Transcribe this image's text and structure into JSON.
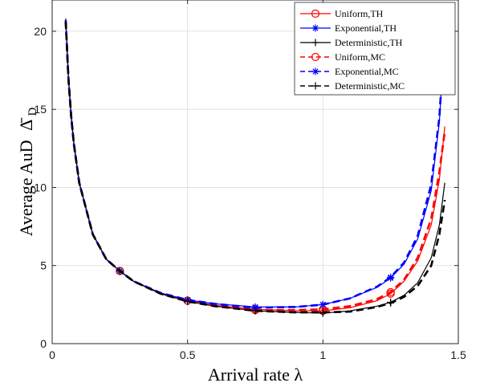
{
  "chart_data": {
    "type": "line",
    "title": "",
    "xlabel": "Arrival rate λ",
    "ylabel_prefix": "Average AuD",
    "ylabel_symbol": "Δ̄",
    "ylabel_subscript": "D",
    "xlim": [
      0,
      1.5
    ],
    "ylim": [
      0,
      22
    ],
    "xticks": [
      0,
      0.5,
      1,
      1.5
    ],
    "xtick_labels": [
      "0",
      "0.5",
      "1",
      "1.5"
    ],
    "yticks": [
      0,
      5,
      10,
      15,
      20
    ],
    "ytick_labels": [
      "0",
      "5",
      "10",
      "15",
      "20"
    ],
    "grid": true,
    "legend_position": "top-right",
    "series": [
      {
        "name": "Uniform,TH",
        "color": "#ff0000",
        "dash": "solid",
        "marker": "circle",
        "x": [
          0.05,
          0.06,
          0.07,
          0.08,
          0.1,
          0.15,
          0.2,
          0.25,
          0.3,
          0.4,
          0.5,
          0.6,
          0.75,
          0.9,
          1.0,
          1.1,
          1.2,
          1.25,
          1.3,
          1.35,
          1.4,
          1.43,
          1.45
        ],
        "y": [
          20.8,
          17.0,
          14.6,
          12.8,
          10.3,
          7.0,
          5.4,
          4.65,
          4.0,
          3.2,
          2.75,
          2.45,
          2.2,
          2.1,
          2.1,
          2.3,
          2.75,
          3.2,
          4.0,
          5.3,
          7.6,
          10.5,
          13.9
        ],
        "marker_x": [
          0.25,
          0.5,
          0.75,
          1.0,
          1.25
        ]
      },
      {
        "name": "Exponential,TH",
        "color": "#0000ff",
        "dash": "solid",
        "marker": "star",
        "x": [
          0.05,
          0.06,
          0.07,
          0.08,
          0.1,
          0.15,
          0.2,
          0.25,
          0.3,
          0.4,
          0.5,
          0.6,
          0.75,
          0.9,
          1.0,
          1.1,
          1.2,
          1.25,
          1.3,
          1.35,
          1.4,
          1.43,
          1.45
        ],
        "y": [
          20.8,
          17.0,
          14.6,
          12.8,
          10.3,
          7.0,
          5.4,
          4.65,
          4.0,
          3.25,
          2.8,
          2.55,
          2.35,
          2.35,
          2.5,
          2.9,
          3.6,
          4.2,
          5.1,
          6.7,
          9.8,
          14.2,
          20.0
        ],
        "marker_x": [
          0.25,
          0.5,
          0.75,
          1.0,
          1.25,
          1.45
        ]
      },
      {
        "name": "Deterministic,TH",
        "color": "#000000",
        "dash": "solid",
        "marker": "plus",
        "x": [
          0.05,
          0.06,
          0.07,
          0.08,
          0.1,
          0.15,
          0.2,
          0.25,
          0.3,
          0.4,
          0.5,
          0.6,
          0.75,
          0.9,
          1.0,
          1.1,
          1.2,
          1.25,
          1.3,
          1.35,
          1.4,
          1.43,
          1.45
        ],
        "y": [
          20.8,
          17.0,
          14.6,
          12.8,
          10.3,
          7.0,
          5.4,
          4.65,
          4.0,
          3.2,
          2.7,
          2.4,
          2.1,
          2.0,
          1.95,
          2.1,
          2.4,
          2.65,
          3.1,
          3.9,
          5.5,
          7.6,
          10.3
        ],
        "marker_x": [
          0.25,
          0.5,
          0.75,
          1.0,
          1.25
        ]
      },
      {
        "name": "Uniform,MC",
        "color": "#ff0000",
        "dash": "dashed",
        "marker": "circle",
        "x": [
          0.05,
          0.06,
          0.07,
          0.08,
          0.1,
          0.15,
          0.2,
          0.25,
          0.3,
          0.4,
          0.5,
          0.6,
          0.75,
          0.9,
          1.0,
          1.1,
          1.2,
          1.25,
          1.3,
          1.35,
          1.4,
          1.43,
          1.45
        ],
        "y": [
          20.7,
          17.0,
          14.6,
          12.8,
          10.3,
          7.0,
          5.4,
          4.65,
          4.0,
          3.2,
          2.75,
          2.45,
          2.15,
          2.15,
          2.2,
          2.4,
          2.85,
          3.3,
          4.1,
          5.5,
          8.0,
          11.0,
          13.6
        ],
        "marker_x": [
          0.25,
          0.5,
          0.75,
          1.0,
          1.25
        ]
      },
      {
        "name": "Exponential,MC",
        "color": "#0000ff",
        "dash": "dashed",
        "marker": "star",
        "x": [
          0.05,
          0.06,
          0.07,
          0.08,
          0.1,
          0.15,
          0.2,
          0.25,
          0.3,
          0.4,
          0.5,
          0.6,
          0.75,
          0.9,
          1.0,
          1.1,
          1.2,
          1.25,
          1.3,
          1.35,
          1.4,
          1.43,
          1.45
        ],
        "y": [
          20.7,
          17.0,
          14.6,
          12.8,
          10.3,
          7.0,
          5.4,
          4.65,
          4.0,
          3.25,
          2.8,
          2.55,
          2.3,
          2.35,
          2.5,
          2.9,
          3.65,
          4.25,
          5.2,
          6.9,
          10.2,
          14.5,
          20.0
        ],
        "marker_x": [
          0.25,
          0.5,
          0.75,
          1.0,
          1.25
        ]
      },
      {
        "name": "Deterministic,MC",
        "color": "#000000",
        "dash": "dashed",
        "marker": "plus",
        "x": [
          0.05,
          0.06,
          0.07,
          0.08,
          0.1,
          0.15,
          0.2,
          0.25,
          0.3,
          0.4,
          0.5,
          0.6,
          0.75,
          0.9,
          1.0,
          1.1,
          1.2,
          1.25,
          1.3,
          1.35,
          1.4,
          1.43,
          1.45
        ],
        "y": [
          20.6,
          17.0,
          14.6,
          12.8,
          10.3,
          7.0,
          5.4,
          4.65,
          4.0,
          3.2,
          2.7,
          2.4,
          2.1,
          2.0,
          2.0,
          2.05,
          2.35,
          2.6,
          3.0,
          3.7,
          5.0,
          7.0,
          9.2
        ],
        "marker_x": [
          0.25,
          0.5,
          0.75,
          1.0,
          1.25
        ]
      }
    ]
  }
}
